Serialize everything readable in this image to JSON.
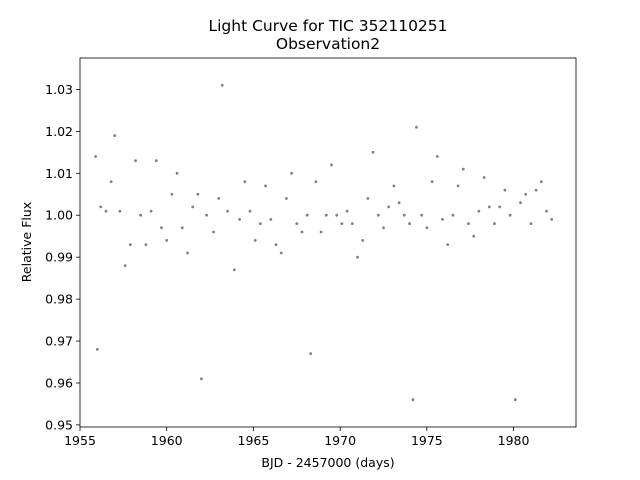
{
  "chart_data": {
    "type": "scatter",
    "title": "Light Curve for TIC 352110251",
    "subtitle": "Observation2",
    "xlabel": "BJD - 2457000 (days)",
    "ylabel": "Relative Flux",
    "xlim": [
      1955.0,
      1983.6
    ],
    "ylim": [
      0.9495,
      1.0375
    ],
    "grid": false,
    "legend": "none",
    "marker_color": "#808080",
    "xticks": [
      1955,
      1960,
      1965,
      1970,
      1975,
      1980
    ],
    "xtick_labels": [
      "1955",
      "1960",
      "1965",
      "1970",
      "1975",
      "1980"
    ],
    "yticks": [
      0.95,
      0.96,
      0.97,
      0.98,
      0.99,
      1.0,
      1.01,
      1.02,
      1.03
    ],
    "ytick_labels": [
      "0.95",
      "0.96",
      "0.97",
      "0.98",
      "0.99",
      "1.00",
      "1.01",
      "1.02",
      "1.03"
    ],
    "series": [
      {
        "x": [
          1955.9,
          1956.0,
          1956.2,
          1956.5,
          1956.8,
          1957.0,
          1957.3,
          1957.6,
          1957.9,
          1958.2,
          1958.5,
          1958.8,
          1959.1,
          1959.4,
          1959.7,
          1960.0,
          1960.3,
          1960.6,
          1960.9,
          1961.2,
          1961.5,
          1961.8,
          1962.0,
          1962.3,
          1962.7,
          1963.0,
          1963.2,
          1963.5,
          1963.9,
          1964.2,
          1964.5,
          1964.8,
          1965.1,
          1965.4,
          1965.7,
          1966.0,
          1966.3,
          1966.6,
          1966.9,
          1967.2,
          1967.5,
          1967.8,
          1968.1,
          1968.3,
          1968.6,
          1968.9,
          1969.2,
          1969.5,
          1969.8,
          1970.1,
          1970.4,
          1970.7,
          1971.0,
          1971.3,
          1971.6,
          1971.9,
          1972.2,
          1972.5,
          1972.8,
          1973.1,
          1973.4,
          1973.7,
          1974.0,
          1974.2,
          1974.4,
          1974.7,
          1975.0,
          1975.3,
          1975.6,
          1975.9,
          1976.2,
          1976.5,
          1976.8,
          1977.1,
          1977.4,
          1977.7,
          1978.0,
          1978.3,
          1978.6,
          1978.9,
          1979.2,
          1979.5,
          1979.8,
          1980.1,
          1980.4,
          1980.7,
          1981.0,
          1981.3,
          1981.6,
          1981.9,
          1982.2
        ],
        "y": [
          1.014,
          0.968,
          1.002,
          1.001,
          1.008,
          1.019,
          1.001,
          0.988,
          0.993,
          1.013,
          1.0,
          0.993,
          1.001,
          1.013,
          0.997,
          0.994,
          1.005,
          1.01,
          0.997,
          0.991,
          1.002,
          1.005,
          0.961,
          1.0,
          0.996,
          1.004,
          1.031,
          1.001,
          0.987,
          0.999,
          1.008,
          1.001,
          0.994,
          0.998,
          1.007,
          0.999,
          0.993,
          0.991,
          1.004,
          1.01,
          0.998,
          0.996,
          1.0,
          0.967,
          1.008,
          0.996,
          1.0,
          1.012,
          1.0,
          0.998,
          1.001,
          0.998,
          0.99,
          0.994,
          1.004,
          1.015,
          1.0,
          0.997,
          1.002,
          1.007,
          1.003,
          1.0,
          0.998,
          0.956,
          1.021,
          1.0,
          0.997,
          1.008,
          1.014,
          0.999,
          0.993,
          1.0,
          1.007,
          1.011,
          0.998,
          0.995,
          1.001,
          1.009,
          1.002,
          0.998,
          1.002,
          1.006,
          1.0,
          0.956,
          1.003,
          1.005,
          0.998,
          1.006,
          1.008,
          1.001,
          0.999
        ]
      }
    ]
  }
}
